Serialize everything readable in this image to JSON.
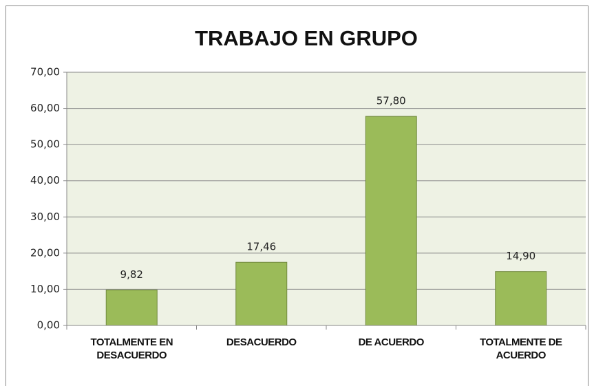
{
  "chart_data": {
    "type": "bar",
    "title": "TRABAJO EN GRUPO",
    "categories": [
      "TOTALMENTE EN DESACUERDO",
      "DESACUERDO",
      "DE ACUERDO",
      "TOTALMENTE DE ACUERDO"
    ],
    "values": [
      9.82,
      17.46,
      57.8,
      14.9
    ],
    "value_labels": [
      "9,82",
      "17,46",
      "57,80",
      "14,90"
    ],
    "color": "#9bbb59",
    "ylim": [
      0,
      70
    ],
    "yticks": [
      {
        "value": 0,
        "label": "0,00"
      },
      {
        "value": 10,
        "label": "10,00"
      },
      {
        "value": 20,
        "label": "20,00"
      },
      {
        "value": 30,
        "label": "30,00"
      },
      {
        "value": 40,
        "label": "40,00"
      },
      {
        "value": 50,
        "label": "50,00"
      },
      {
        "value": 60,
        "label": "60,00"
      },
      {
        "value": 70,
        "label": "70,00"
      }
    ],
    "grid": true
  }
}
